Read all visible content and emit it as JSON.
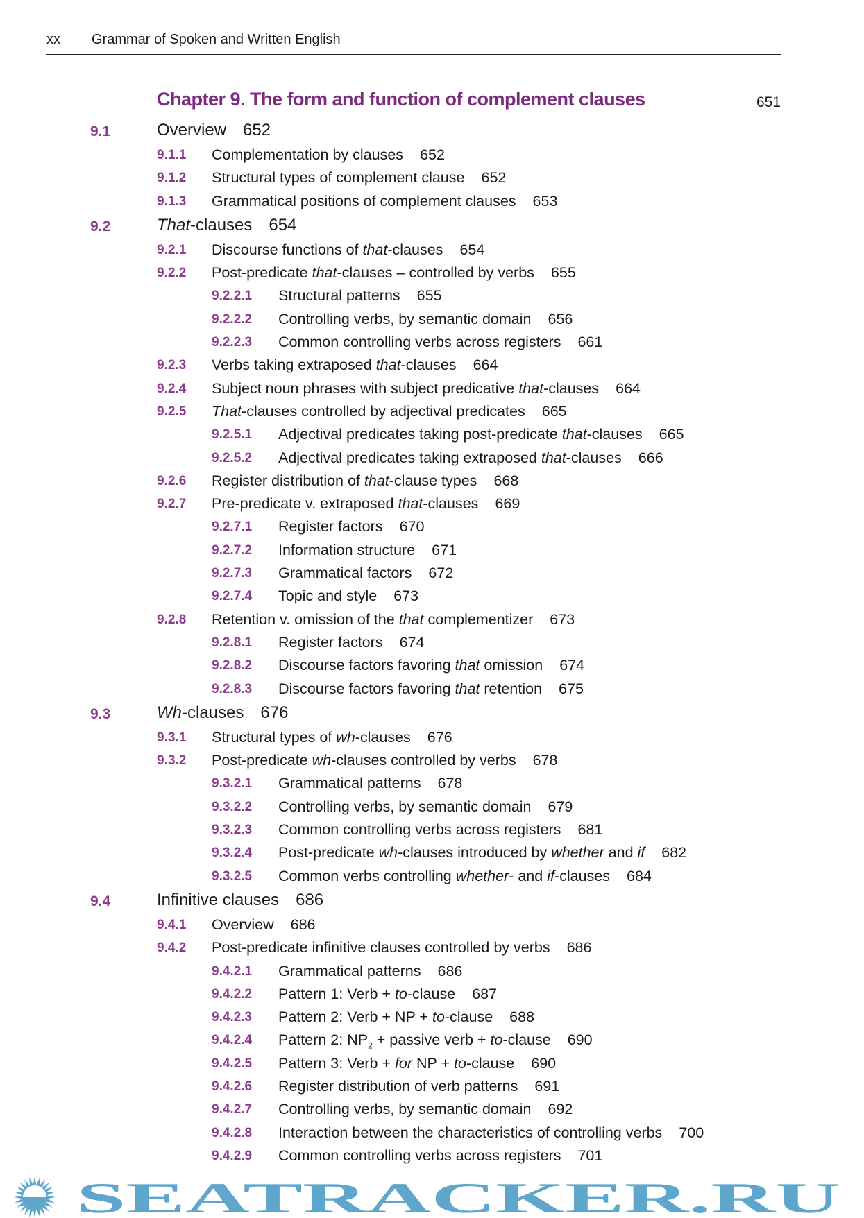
{
  "header": {
    "page_number": "xx",
    "book_title": "Grammar of Spoken and Written English"
  },
  "chapter": {
    "title": "Chapter 9.  The form and function of complement clauses",
    "page": "651"
  },
  "entries": [
    {
      "level": 1,
      "num": "9.1",
      "parts": [
        {
          "t": "Overview"
        }
      ],
      "page": "652"
    },
    {
      "level": 2,
      "num": "9.1.1",
      "parts": [
        {
          "t": "Complementation by clauses"
        }
      ],
      "page": "652"
    },
    {
      "level": 2,
      "num": "9.1.2",
      "parts": [
        {
          "t": "Structural types of complement clause"
        }
      ],
      "page": "652"
    },
    {
      "level": 2,
      "num": "9.1.3",
      "parts": [
        {
          "t": "Grammatical positions of complement clauses"
        }
      ],
      "page": "653"
    },
    {
      "level": 1,
      "num": "9.2",
      "parts": [
        {
          "t": "That",
          "i": true
        },
        {
          "t": "-clauses"
        }
      ],
      "page": "654"
    },
    {
      "level": 2,
      "num": "9.2.1",
      "parts": [
        {
          "t": "Discourse functions of "
        },
        {
          "t": "that",
          "i": true
        },
        {
          "t": "-clauses"
        }
      ],
      "page": "654"
    },
    {
      "level": 2,
      "num": "9.2.2",
      "parts": [
        {
          "t": "Post-predicate "
        },
        {
          "t": "that",
          "i": true
        },
        {
          "t": "-clauses – controlled by verbs"
        }
      ],
      "page": "655"
    },
    {
      "level": 3,
      "num": "9.2.2.1",
      "parts": [
        {
          "t": "Structural patterns"
        }
      ],
      "page": "655"
    },
    {
      "level": 3,
      "num": "9.2.2.2",
      "parts": [
        {
          "t": "Controlling verbs, by semantic domain"
        }
      ],
      "page": "656"
    },
    {
      "level": 3,
      "num": "9.2.2.3",
      "parts": [
        {
          "t": "Common controlling verbs across registers"
        }
      ],
      "page": "661"
    },
    {
      "level": 2,
      "num": "9.2.3",
      "parts": [
        {
          "t": "Verbs taking extraposed "
        },
        {
          "t": "that",
          "i": true
        },
        {
          "t": "-clauses"
        }
      ],
      "page": "664"
    },
    {
      "level": 2,
      "num": "9.2.4",
      "parts": [
        {
          "t": "Subject noun phrases with subject predicative "
        },
        {
          "t": "that",
          "i": true
        },
        {
          "t": "-clauses"
        }
      ],
      "page": "664"
    },
    {
      "level": 2,
      "num": "9.2.5",
      "parts": [
        {
          "t": "That",
          "i": true
        },
        {
          "t": "-clauses controlled by adjectival predicates"
        }
      ],
      "page": "665"
    },
    {
      "level": 3,
      "num": "9.2.5.1",
      "parts": [
        {
          "t": "Adjectival predicates taking post-predicate "
        },
        {
          "t": "that",
          "i": true
        },
        {
          "t": "-clauses"
        }
      ],
      "page": "665"
    },
    {
      "level": 3,
      "num": "9.2.5.2",
      "parts": [
        {
          "t": "Adjectival predicates taking extraposed "
        },
        {
          "t": "that",
          "i": true
        },
        {
          "t": "-clauses"
        }
      ],
      "page": "666"
    },
    {
      "level": 2,
      "num": "9.2.6",
      "parts": [
        {
          "t": "Register distribution of "
        },
        {
          "t": "that",
          "i": true
        },
        {
          "t": "-clause types"
        }
      ],
      "page": "668"
    },
    {
      "level": 2,
      "num": "9.2.7",
      "parts": [
        {
          "t": "Pre-predicate v. extraposed "
        },
        {
          "t": "that",
          "i": true
        },
        {
          "t": "-clauses"
        }
      ],
      "page": "669"
    },
    {
      "level": 3,
      "num": "9.2.7.1",
      "parts": [
        {
          "t": "Register factors"
        }
      ],
      "page": "670"
    },
    {
      "level": 3,
      "num": "9.2.7.2",
      "parts": [
        {
          "t": "Information structure"
        }
      ],
      "page": "671"
    },
    {
      "level": 3,
      "num": "9.2.7.3",
      "parts": [
        {
          "t": "Grammatical factors"
        }
      ],
      "page": "672"
    },
    {
      "level": 3,
      "num": "9.2.7.4",
      "parts": [
        {
          "t": "Topic and style"
        }
      ],
      "page": "673"
    },
    {
      "level": 2,
      "num": "9.2.8",
      "parts": [
        {
          "t": "Retention v. omission of the "
        },
        {
          "t": "that",
          "i": true
        },
        {
          "t": " complementizer"
        }
      ],
      "page": "673"
    },
    {
      "level": 3,
      "num": "9.2.8.1",
      "parts": [
        {
          "t": "Register factors"
        }
      ],
      "page": "674"
    },
    {
      "level": 3,
      "num": "9.2.8.2",
      "parts": [
        {
          "t": "Discourse factors favoring "
        },
        {
          "t": "that",
          "i": true
        },
        {
          "t": " omission"
        }
      ],
      "page": "674"
    },
    {
      "level": 3,
      "num": "9.2.8.3",
      "parts": [
        {
          "t": "Discourse factors favoring "
        },
        {
          "t": "that",
          "i": true
        },
        {
          "t": " retention"
        }
      ],
      "page": "675"
    },
    {
      "level": 1,
      "num": "9.3",
      "parts": [
        {
          "t": "Wh",
          "i": true
        },
        {
          "t": "-clauses"
        }
      ],
      "page": "676"
    },
    {
      "level": 2,
      "num": "9.3.1",
      "parts": [
        {
          "t": "Structural types of "
        },
        {
          "t": "wh",
          "i": true
        },
        {
          "t": "-clauses"
        }
      ],
      "page": "676"
    },
    {
      "level": 2,
      "num": "9.3.2",
      "parts": [
        {
          "t": "Post-predicate "
        },
        {
          "t": "wh",
          "i": true
        },
        {
          "t": "-clauses controlled by verbs"
        }
      ],
      "page": "678"
    },
    {
      "level": 3,
      "num": "9.3.2.1",
      "parts": [
        {
          "t": "Grammatical patterns"
        }
      ],
      "page": "678"
    },
    {
      "level": 3,
      "num": "9.3.2.2",
      "parts": [
        {
          "t": "Controlling verbs, by semantic domain"
        }
      ],
      "page": "679"
    },
    {
      "level": 3,
      "num": "9.3.2.3",
      "parts": [
        {
          "t": "Common controlling verbs across registers"
        }
      ],
      "page": "681"
    },
    {
      "level": 3,
      "num": "9.3.2.4",
      "parts": [
        {
          "t": "Post-predicate "
        },
        {
          "t": "wh",
          "i": true
        },
        {
          "t": "-clauses introduced by "
        },
        {
          "t": "whether",
          "i": true
        },
        {
          "t": " and "
        },
        {
          "t": "if",
          "i": true
        }
      ],
      "page": "682"
    },
    {
      "level": 3,
      "num": "9.3.2.5",
      "parts": [
        {
          "t": "Common verbs controlling "
        },
        {
          "t": "whether",
          "i": true
        },
        {
          "t": "- and "
        },
        {
          "t": "if",
          "i": true
        },
        {
          "t": "-clauses"
        }
      ],
      "page": "684"
    },
    {
      "level": 1,
      "num": "9.4",
      "parts": [
        {
          "t": "Infinitive clauses"
        }
      ],
      "page": "686"
    },
    {
      "level": 2,
      "num": "9.4.1",
      "parts": [
        {
          "t": "Overview"
        }
      ],
      "page": "686"
    },
    {
      "level": 2,
      "num": "9.4.2",
      "parts": [
        {
          "t": "Post-predicate infinitive clauses controlled by verbs"
        }
      ],
      "page": "686"
    },
    {
      "level": 3,
      "num": "9.4.2.1",
      "parts": [
        {
          "t": "Grammatical patterns"
        }
      ],
      "page": "686"
    },
    {
      "level": 3,
      "num": "9.4.2.2",
      "parts": [
        {
          "t": "Pattern 1: Verb + "
        },
        {
          "t": "to",
          "i": true
        },
        {
          "t": "-clause"
        }
      ],
      "page": "687"
    },
    {
      "level": 3,
      "num": "9.4.2.3",
      "parts": [
        {
          "t": "Pattern 2: Verb + NP + "
        },
        {
          "t": "to",
          "i": true
        },
        {
          "t": "-clause"
        }
      ],
      "page": "688"
    },
    {
      "level": 3,
      "num": "9.4.2.4",
      "parts": [
        {
          "t": "Pattern 2: NP"
        },
        {
          "t": "2",
          "sub": true
        },
        {
          "t": " + passive verb + "
        },
        {
          "t": "to",
          "i": true
        },
        {
          "t": "-clause"
        }
      ],
      "page": "690"
    },
    {
      "level": 3,
      "num": "9.4.2.5",
      "parts": [
        {
          "t": "Pattern 3: Verb + "
        },
        {
          "t": "for",
          "i": true
        },
        {
          "t": " NP + "
        },
        {
          "t": "to",
          "i": true
        },
        {
          "t": "-clause"
        }
      ],
      "page": "690"
    },
    {
      "level": 3,
      "num": "9.4.2.6",
      "parts": [
        {
          "t": "Register distribution of verb patterns"
        }
      ],
      "page": "691"
    },
    {
      "level": 3,
      "num": "9.4.2.7",
      "parts": [
        {
          "t": "Controlling verbs, by semantic domain"
        }
      ],
      "page": "692"
    },
    {
      "level": 3,
      "num": "9.4.2.8",
      "parts": [
        {
          "t": "Interaction between the characteristics of controlling verbs"
        }
      ],
      "page": "700"
    },
    {
      "level": 3,
      "num": "9.4.2.9",
      "parts": [
        {
          "t": "Common controlling verbs across registers"
        }
      ],
      "page": "701"
    }
  ],
  "watermark": {
    "text": "SEATRACKER.RU",
    "color": "#5ea6cc",
    "icon": "sun-icon"
  },
  "colors": {
    "section_number": "#8a3a8c",
    "chapter_heading": "#7b2b7d"
  }
}
